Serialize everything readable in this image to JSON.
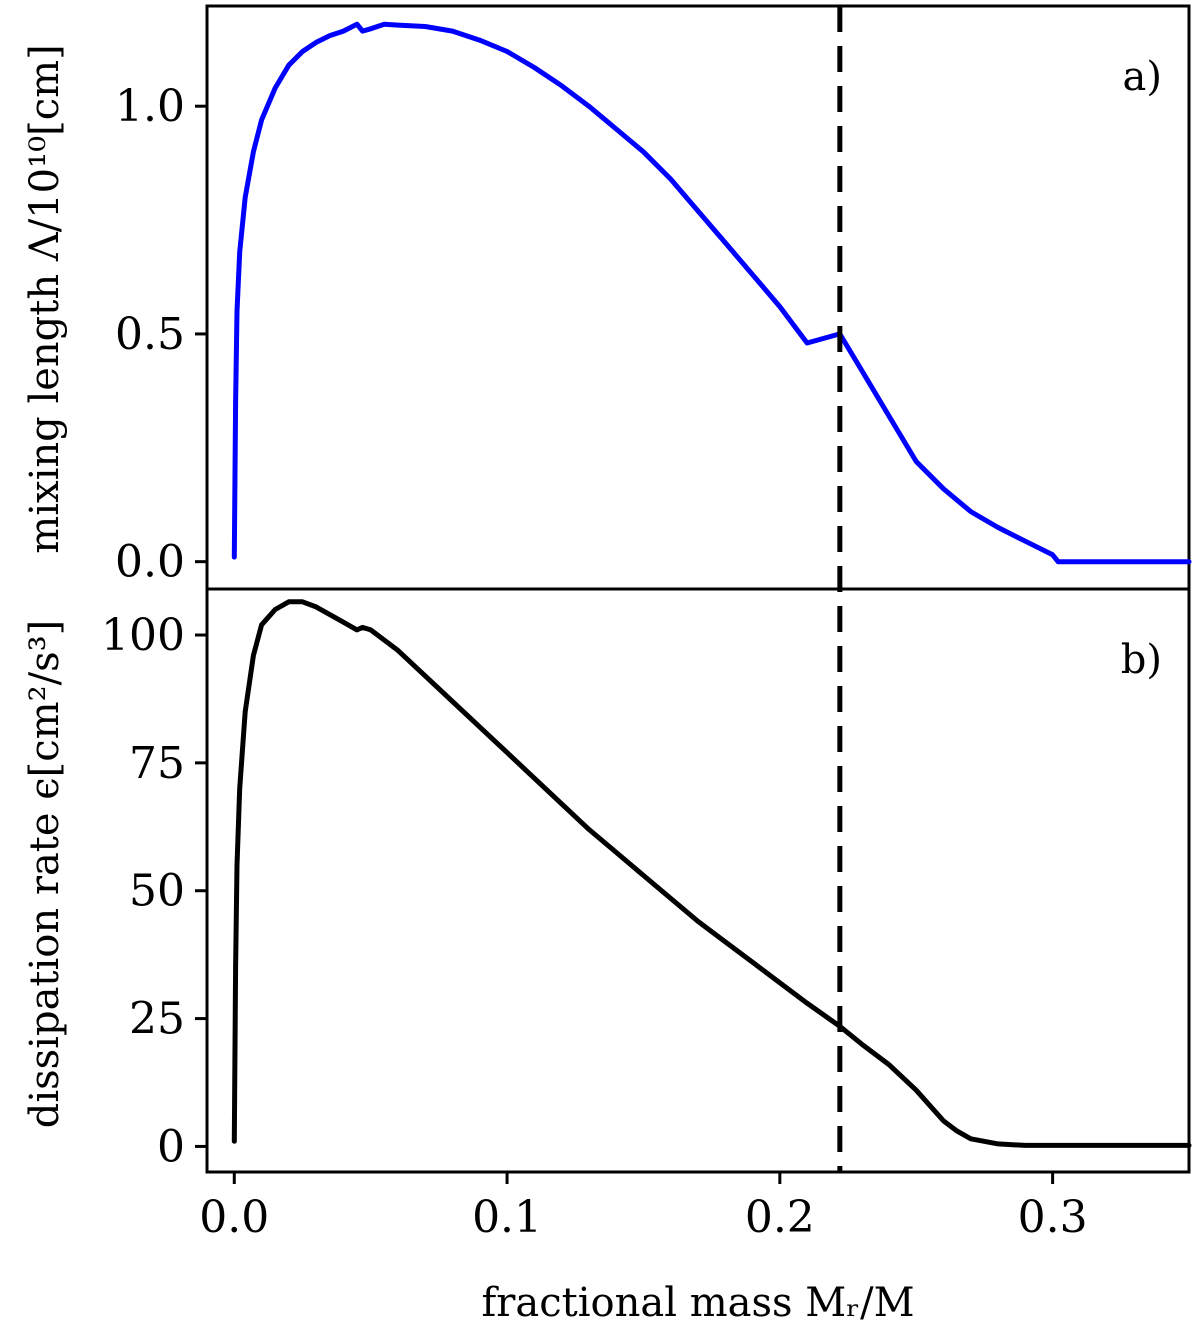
{
  "chart_data": [
    {
      "type": "line",
      "panel_label": "a)",
      "ylabel": "mixing length Λ/10¹⁰[cm]",
      "xlim": [
        -0.01,
        0.35
      ],
      "ylim": [
        -0.06,
        1.22
      ],
      "yticks": [
        "0.0",
        "0.5",
        "1.0"
      ],
      "ytick_values": [
        0.0,
        0.5,
        1.0
      ],
      "series": [
        {
          "color": "#0000ff",
          "x": [
            0.0,
            0.0005,
            0.001,
            0.002,
            0.004,
            0.007,
            0.01,
            0.015,
            0.02,
            0.025,
            0.03,
            0.035,
            0.04,
            0.045,
            0.047,
            0.05,
            0.055,
            0.06,
            0.07,
            0.08,
            0.09,
            0.1,
            0.11,
            0.12,
            0.13,
            0.14,
            0.15,
            0.16,
            0.17,
            0.18,
            0.19,
            0.2,
            0.21,
            0.222,
            0.23,
            0.24,
            0.25,
            0.26,
            0.27,
            0.28,
            0.29,
            0.3,
            0.302,
            0.31,
            0.32,
            0.33,
            0.34,
            0.35
          ],
          "y": [
            0.01,
            0.35,
            0.55,
            0.68,
            0.8,
            0.9,
            0.97,
            1.04,
            1.09,
            1.12,
            1.14,
            1.155,
            1.165,
            1.18,
            1.165,
            1.17,
            1.18,
            1.178,
            1.175,
            1.165,
            1.145,
            1.12,
            1.085,
            1.045,
            1.0,
            0.95,
            0.9,
            0.84,
            0.77,
            0.7,
            0.63,
            0.56,
            0.48,
            0.5,
            0.42,
            0.32,
            0.22,
            0.16,
            0.11,
            0.075,
            0.045,
            0.015,
            0.0,
            0.0,
            0.0,
            0.0,
            0.0,
            0.0
          ]
        }
      ]
    },
    {
      "type": "line",
      "panel_label": "b)",
      "ylabel": "dissipation rate ϵ[cm²/s³]",
      "xlabel": "fractional mass Mᵣ/M",
      "xlim": [
        -0.01,
        0.35
      ],
      "ylim": [
        -5,
        109
      ],
      "xticks": [
        "0.0",
        "0.1",
        "0.2",
        "0.3"
      ],
      "xtick_values": [
        0.0,
        0.1,
        0.2,
        0.3
      ],
      "yticks": [
        "0",
        "25",
        "50",
        "75",
        "100"
      ],
      "ytick_values": [
        0,
        25,
        50,
        75,
        100
      ],
      "vline_x": 0.222,
      "series": [
        {
          "color": "#000000",
          "x": [
            0.0,
            0.0005,
            0.001,
            0.002,
            0.004,
            0.007,
            0.01,
            0.015,
            0.02,
            0.025,
            0.03,
            0.035,
            0.04,
            0.045,
            0.047,
            0.05,
            0.06,
            0.07,
            0.08,
            0.09,
            0.1,
            0.11,
            0.12,
            0.13,
            0.14,
            0.15,
            0.16,
            0.17,
            0.18,
            0.19,
            0.2,
            0.21,
            0.222,
            0.23,
            0.24,
            0.25,
            0.26,
            0.265,
            0.27,
            0.28,
            0.29,
            0.3,
            0.31,
            0.32,
            0.33,
            0.34,
            0.35
          ],
          "y": [
            1,
            35,
            55,
            70,
            85,
            96,
            102,
            105,
            106.5,
            106.5,
            105.5,
            104,
            102.5,
            101,
            101.5,
            101,
            97,
            92,
            87,
            82,
            77,
            72,
            67,
            62,
            57.5,
            53,
            48.5,
            44,
            40,
            36,
            32,
            28,
            23.5,
            20,
            16,
            11,
            5,
            3,
            1.5,
            0.5,
            0.2,
            0.2,
            0.2,
            0.2,
            0.2,
            0.2,
            0.2
          ]
        }
      ]
    }
  ]
}
